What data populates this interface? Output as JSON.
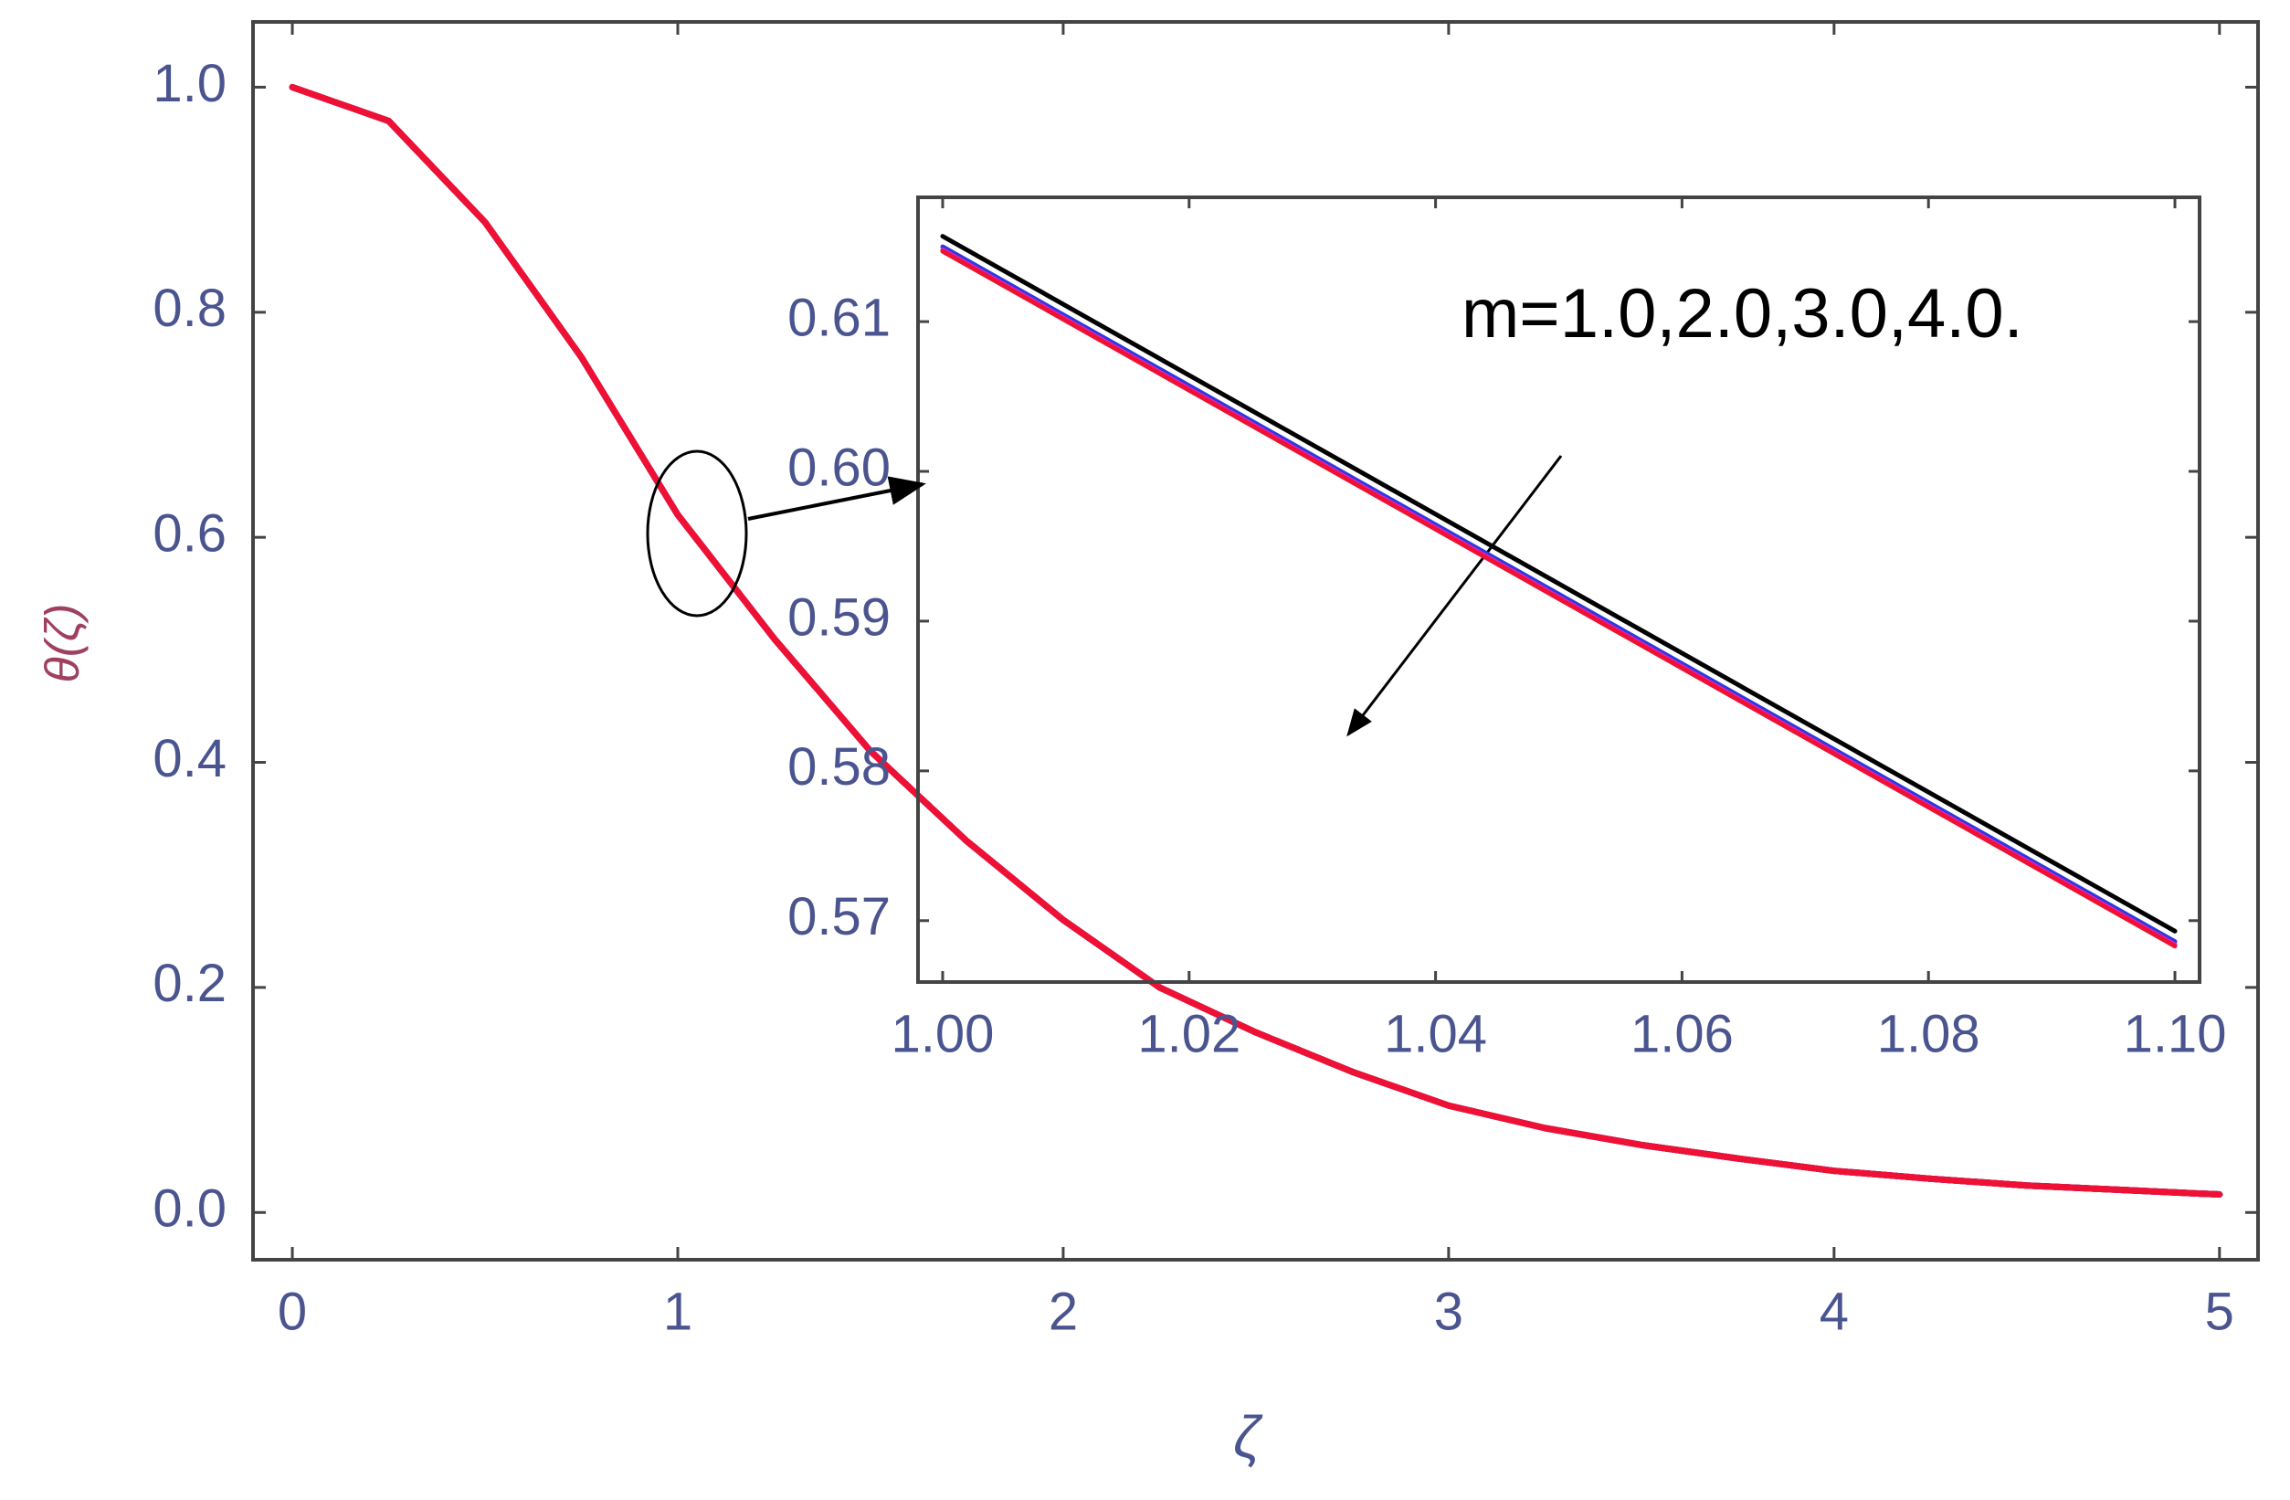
{
  "chart_data": [
    {
      "type": "line",
      "x_label": "ζ",
      "y_label": "θ(ζ)",
      "x": [
        0,
        0.25,
        0.5,
        0.75,
        1,
        1.25,
        1.5,
        1.75,
        2,
        2.25,
        2.5,
        2.75,
        3,
        3.25,
        3.5,
        3.75,
        4,
        4.25,
        4.5,
        4.75,
        5
      ],
      "series": [
        {
          "color": "#000000",
          "values": [
            1,
            0.97,
            0.88,
            0.76,
            0.62,
            0.51,
            0.41,
            0.33,
            0.26,
            0.2,
            0.16,
            0.125,
            0.095,
            0.075,
            0.06,
            0.048,
            0.037,
            0.03,
            0.024,
            0.02,
            0.016
          ]
        },
        {
          "color": "#2a3adf",
          "values": [
            1,
            0.97,
            0.88,
            0.76,
            0.62,
            0.51,
            0.41,
            0.33,
            0.26,
            0.2,
            0.16,
            0.125,
            0.095,
            0.075,
            0.06,
            0.048,
            0.037,
            0.03,
            0.024,
            0.02,
            0.016
          ]
        },
        {
          "color": "#e020c0",
          "values": [
            1,
            0.97,
            0.88,
            0.76,
            0.62,
            0.51,
            0.41,
            0.33,
            0.26,
            0.2,
            0.16,
            0.125,
            0.095,
            0.075,
            0.06,
            0.048,
            0.037,
            0.03,
            0.024,
            0.02,
            0.016
          ]
        },
        {
          "color": "#ee1133",
          "values": [
            1,
            0.97,
            0.88,
            0.76,
            0.62,
            0.51,
            0.41,
            0.33,
            0.26,
            0.2,
            0.16,
            0.125,
            0.095,
            0.075,
            0.06,
            0.048,
            0.037,
            0.03,
            0.024,
            0.02,
            0.016
          ]
        }
      ],
      "xlim": [
        -0.102,
        5.1
      ],
      "ylim": [
        -0.042,
        1.058
      ],
      "xticks": [
        0,
        1,
        2,
        3,
        4,
        5
      ],
      "yticks": [
        {
          "value": 0,
          "label": "0.0"
        },
        0.2,
        0.4,
        0.6,
        0.8,
        {
          "value": 1,
          "label": "1.0"
        }
      ]
    },
    {
      "type": "line",
      "annotation": "m=1.0,2.0,3.0,4.0.",
      "x": [
        1.0,
        1.1
      ],
      "series": [
        {
          "color": "#000000",
          "values": [
            0.6157,
            0.5693
          ]
        },
        {
          "color": "#2a3adf",
          "values": [
            0.615,
            0.5686
          ]
        },
        {
          "color": "#e020c0",
          "values": [
            0.6148,
            0.5684
          ]
        },
        {
          "color": "#ee1133",
          "values": [
            0.6147,
            0.5683
          ]
        }
      ],
      "xlim": [
        0.998,
        1.102
      ],
      "ylim": [
        0.5659,
        0.6183
      ],
      "xticks": [
        {
          "value": 1.0,
          "label": "1.00"
        },
        1.02,
        1.04,
        1.06,
        1.08,
        {
          "value": 1.1,
          "label": "1.10"
        }
      ],
      "yticks": [
        0.57,
        0.58,
        0.59,
        {
          "value": 0.6,
          "label": "0.60"
        },
        0.61
      ]
    }
  ]
}
